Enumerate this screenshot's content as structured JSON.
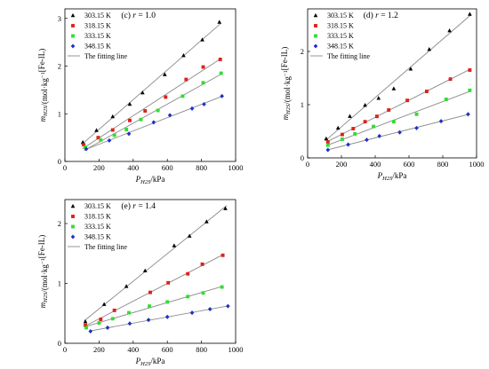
{
  "chart_data": [
    {
      "type": "scatter",
      "panel_label": "(c) r = 1.0",
      "xlabel": "P_H2S/kPa",
      "ylabel": "m_H2S/(mol·kg⁻¹[Fe-IL)",
      "xlim": [
        0,
        1000
      ],
      "ylim": [
        0,
        3.2
      ],
      "xticks": [
        0,
        200,
        400,
        600,
        800,
        1000
      ],
      "yticks": [
        0,
        1,
        2,
        3
      ],
      "legend_position": "top-left",
      "fit_label": "The fitting line",
      "series": [
        {
          "name": "303.15 K",
          "marker": "triangle",
          "color": "#000000",
          "x": [
            105,
            185,
            280,
            380,
            455,
            585,
            695,
            805,
            905
          ],
          "y": [
            0.4,
            0.65,
            0.94,
            1.2,
            1.44,
            1.82,
            2.22,
            2.55,
            2.92
          ]
        },
        {
          "name": "318.15 K",
          "marker": "square",
          "color": "#e0201b",
          "x": [
            110,
            195,
            280,
            380,
            470,
            590,
            710,
            810,
            910
          ],
          "y": [
            0.35,
            0.5,
            0.66,
            0.86,
            1.06,
            1.35,
            1.72,
            1.98,
            2.14
          ]
        },
        {
          "name": "333.15 K",
          "marker": "square",
          "color": "#32dd32",
          "x": [
            120,
            210,
            290,
            360,
            445,
            545,
            690,
            810,
            915
          ],
          "y": [
            0.3,
            0.45,
            0.55,
            0.67,
            0.88,
            1.07,
            1.37,
            1.65,
            1.85
          ]
        },
        {
          "name": "348.15 K",
          "marker": "diamond",
          "color": "#1f2fc8",
          "x": [
            125,
            260,
            375,
            520,
            615,
            745,
            815,
            920
          ],
          "y": [
            0.26,
            0.44,
            0.58,
            0.82,
            0.97,
            1.11,
            1.2,
            1.37
          ]
        }
      ]
    },
    {
      "type": "scatter",
      "panel_label": "(d) r = 1.2",
      "xlabel": "P_H2S/kPa",
      "ylabel": "m_H2S/(mol·kg⁻¹[Fe-IL)",
      "xlim": [
        0,
        1000
      ],
      "ylim": [
        0,
        2.8
      ],
      "xticks": [
        0,
        200,
        400,
        600,
        800,
        1000
      ],
      "yticks": [
        0,
        1,
        2
      ],
      "legend_position": "top-left",
      "fit_label": "The fitting line",
      "series": [
        {
          "name": "303.15 K",
          "marker": "triangle",
          "color": "#000000",
          "x": [
            110,
            180,
            250,
            340,
            420,
            510,
            610,
            720,
            840,
            960
          ],
          "y": [
            0.36,
            0.56,
            0.78,
            0.99,
            1.12,
            1.3,
            1.67,
            2.04,
            2.39,
            2.7
          ]
        },
        {
          "name": "318.15 K",
          "marker": "square",
          "color": "#e0201b",
          "x": [
            120,
            205,
            270,
            340,
            410,
            480,
            590,
            705,
            845,
            960
          ],
          "y": [
            0.3,
            0.44,
            0.55,
            0.68,
            0.78,
            0.9,
            1.08,
            1.25,
            1.48,
            1.65
          ]
        },
        {
          "name": "333.15 K",
          "marker": "square",
          "color": "#32dd32",
          "x": [
            120,
            205,
            280,
            390,
            510,
            645,
            820,
            960
          ],
          "y": [
            0.24,
            0.35,
            0.45,
            0.59,
            0.68,
            0.82,
            1.1,
            1.27
          ]
        },
        {
          "name": "348.15 K",
          "marker": "diamond",
          "color": "#1f2fc8",
          "x": [
            120,
            240,
            350,
            425,
            545,
            645,
            790,
            950
          ],
          "y": [
            0.15,
            0.25,
            0.34,
            0.41,
            0.48,
            0.56,
            0.69,
            0.82
          ]
        }
      ]
    },
    {
      "type": "scatter",
      "panel_label": "(e) r = 1.4",
      "xlabel": "P_H2S/kPa",
      "ylabel": "m_H2S/(mol·kg⁻¹[Fe-IL)",
      "xlim": [
        0,
        1000
      ],
      "ylim": [
        0,
        2.4
      ],
      "xticks": [
        0,
        200,
        400,
        600,
        800,
        1000
      ],
      "yticks": [
        0,
        1,
        2
      ],
      "legend_position": "top-left",
      "fit_label": "The fitting line",
      "series": [
        {
          "name": "303.15 K",
          "marker": "triangle",
          "color": "#000000",
          "x": [
            120,
            230,
            360,
            470,
            640,
            730,
            830,
            940
          ],
          "y": [
            0.36,
            0.65,
            0.95,
            1.21,
            1.63,
            1.79,
            2.03,
            2.25
          ]
        },
        {
          "name": "318.15 K",
          "marker": "square",
          "color": "#e0201b",
          "x": [
            120,
            210,
            290,
            500,
            605,
            720,
            805,
            925
          ],
          "y": [
            0.3,
            0.4,
            0.55,
            0.85,
            1.01,
            1.16,
            1.32,
            1.47
          ]
        },
        {
          "name": "333.15 K",
          "marker": "square",
          "color": "#32dd32",
          "x": [
            125,
            200,
            280,
            375,
            495,
            600,
            720,
            810,
            920
          ],
          "y": [
            0.26,
            0.34,
            0.41,
            0.51,
            0.62,
            0.69,
            0.78,
            0.84,
            0.94
          ]
        },
        {
          "name": "348.15 K",
          "marker": "diamond",
          "color": "#1f2fc8",
          "x": [
            150,
            250,
            380,
            490,
            600,
            745,
            850,
            955
          ],
          "y": [
            0.2,
            0.26,
            0.33,
            0.39,
            0.44,
            0.51,
            0.57,
            0.62
          ]
        }
      ]
    }
  ]
}
